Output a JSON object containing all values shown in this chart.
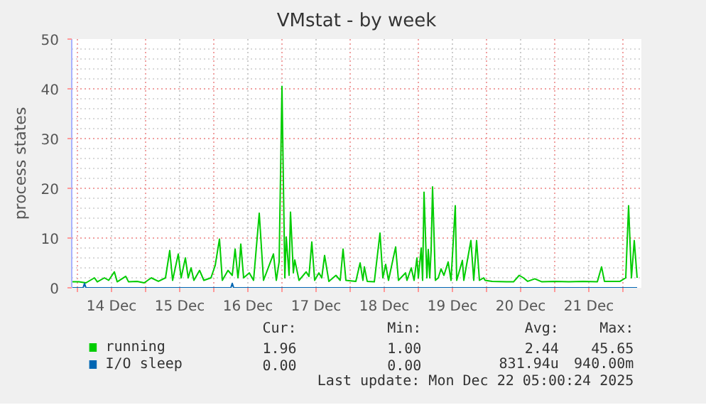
{
  "chart_data": {
    "type": "line",
    "title": "VMstat - by week",
    "ylabel": "process states",
    "xlim": [
      "2025-12-13T22:00",
      "2025-12-22T06:30"
    ],
    "xticks": [
      {
        "value": "2025-12-14T00:00",
        "label": null
      },
      {
        "value": "2025-12-14T12:00",
        "label": "14 Dec"
      },
      {
        "value": "2025-12-15T00:00",
        "label": null
      },
      {
        "value": "2025-12-15T12:00",
        "label": "15 Dec"
      },
      {
        "value": "2025-12-16T00:00",
        "label": null
      },
      {
        "value": "2025-12-16T12:00",
        "label": "16 Dec"
      },
      {
        "value": "2025-12-17T00:00",
        "label": null
      },
      {
        "value": "2025-12-17T12:00",
        "label": "17 Dec"
      },
      {
        "value": "2025-12-18T00:00",
        "label": null
      },
      {
        "value": "2025-12-18T12:00",
        "label": "18 Dec"
      },
      {
        "value": "2025-12-19T00:00",
        "label": null
      },
      {
        "value": "2025-12-19T12:00",
        "label": "19 Dec"
      },
      {
        "value": "2025-12-20T00:00",
        "label": null
      },
      {
        "value": "2025-12-20T12:00",
        "label": "20 Dec"
      },
      {
        "value": "2025-12-21T00:00",
        "label": null
      },
      {
        "value": "2025-12-21T12:00",
        "label": "21 Dec"
      },
      {
        "value": "2025-12-22T00:00",
        "label": null
      }
    ],
    "ylim": [
      0,
      50
    ],
    "yticks": [
      0,
      10,
      20,
      30,
      40,
      50
    ],
    "grid": true,
    "legend": "bottom",
    "series": [
      {
        "name": "running",
        "color": "#00cc00",
        "x": [
          "2025-12-13T22:00",
          "2025-12-14T00:30",
          "2025-12-14T03:00",
          "2025-12-14T06:00",
          "2025-12-14T07:00",
          "2025-12-14T09:30",
          "2025-12-14T11:00",
          "2025-12-14T13:00",
          "2025-12-14T14:00",
          "2025-12-14T17:00",
          "2025-12-14T18:00",
          "2025-12-14T21:00",
          "2025-12-14T23:30",
          "2025-12-15T02:00",
          "2025-12-15T04:30",
          "2025-12-15T07:00",
          "2025-12-15T08:30",
          "2025-12-15T09:30",
          "2025-12-15T11:30",
          "2025-12-15T12:30",
          "2025-12-15T14:00",
          "2025-12-15T15:00",
          "2025-12-15T16:00",
          "2025-12-15T17:00",
          "2025-12-15T19:00",
          "2025-12-15T20:30",
          "2025-12-15T23:00",
          "2025-12-16T00:30",
          "2025-12-16T02:00",
          "2025-12-16T03:00",
          "2025-12-16T05:00",
          "2025-12-16T06:30",
          "2025-12-16T07:30",
          "2025-12-16T08:30",
          "2025-12-16T09:00",
          "2025-12-16T09:30",
          "2025-12-16T10:30",
          "2025-12-16T12:30",
          "2025-12-16T14:00",
          "2025-12-16T16:00",
          "2025-12-16T17:30",
          "2025-12-16T21:00",
          "2025-12-16T22:00",
          "2025-12-16T23:00",
          "2025-12-17T00:00",
          "2025-12-17T01:00",
          "2025-12-17T01:30",
          "2025-12-17T02:30",
          "2025-12-17T03:00",
          "2025-12-17T04:00",
          "2025-12-17T04:30",
          "2025-12-17T06:00",
          "2025-12-17T08:30",
          "2025-12-17T09:30",
          "2025-12-17T10:30",
          "2025-12-17T11:30",
          "2025-12-17T13:00",
          "2025-12-17T14:00",
          "2025-12-17T15:00",
          "2025-12-17T16:30",
          "2025-12-17T19:00",
          "2025-12-17T20:30",
          "2025-12-17T21:30",
          "2025-12-17T22:30",
          "2025-12-18T02:00",
          "2025-12-18T03:30",
          "2025-12-18T04:30",
          "2025-12-18T05:00",
          "2025-12-18T06:00",
          "2025-12-18T08:30",
          "2025-12-18T10:30",
          "2025-12-18T11:30",
          "2025-12-18T12:30",
          "2025-12-18T13:30",
          "2025-12-18T16:00",
          "2025-12-18T17:00",
          "2025-12-18T19:30",
          "2025-12-18T20:00",
          "2025-12-18T21:30",
          "2025-12-18T22:30",
          "2025-12-18T23:30",
          "2025-12-19T00:00",
          "2025-12-19T01:00",
          "2025-12-19T01:30",
          "2025-12-19T02:00",
          "2025-12-19T03:00",
          "2025-12-19T03:30",
          "2025-12-19T04:00",
          "2025-12-19T04:30",
          "2025-12-19T05:00",
          "2025-12-19T06:00",
          "2025-12-19T07:00",
          "2025-12-19T08:00",
          "2025-12-19T09:00",
          "2025-12-19T10:30",
          "2025-12-19T11:30",
          "2025-12-19T13:00",
          "2025-12-19T13:30",
          "2025-12-19T15:30",
          "2025-12-19T16:00",
          "2025-12-19T18:30",
          "2025-12-19T19:30",
          "2025-12-19T20:30",
          "2025-12-19T21:30",
          "2025-12-19T23:00",
          "2025-12-19T23:30",
          "2025-12-20T02:00",
          "2025-12-20T07:00",
          "2025-12-20T09:30",
          "2025-12-20T11:30",
          "2025-12-20T13:00",
          "2025-12-20T14:30",
          "2025-12-20T17:00",
          "2025-12-20T19:30",
          "2025-12-21T00:00",
          "2025-12-21T05:00",
          "2025-12-21T10:00",
          "2025-12-21T15:00",
          "2025-12-21T16:30",
          "2025-12-21T17:30",
          "2025-12-21T23:00",
          "2025-12-22T01:00",
          "2025-12-22T02:00",
          "2025-12-22T03:00",
          "2025-12-22T04:00",
          "2025-12-22T05:00"
        ],
        "values": [
          1.2,
          1.2,
          1,
          2,
          1.2,
          2,
          1.5,
          3.2,
          1.2,
          2.3,
          1.2,
          1.3,
          1,
          2,
          1.3,
          2,
          7.5,
          1.5,
          6.8,
          2,
          6,
          2,
          4,
          1.5,
          3.5,
          1.5,
          2,
          4.5,
          9.8,
          1.5,
          3.5,
          2.5,
          7.8,
          2,
          4.5,
          8.8,
          2,
          3,
          1.5,
          15,
          1.5,
          6.8,
          1.5,
          5.2,
          40.5,
          2,
          10.2,
          2.5,
          15.2,
          3,
          5.6,
          1.5,
          3.2,
          2.3,
          9.2,
          1.5,
          3,
          2,
          6.5,
          1.3,
          2.5,
          1.5,
          7.8,
          1.5,
          1.3,
          5,
          1.5,
          4.2,
          1.3,
          1.2,
          11,
          2,
          4.7,
          1.5,
          8.2,
          1.5,
          3,
          1.5,
          4,
          1.5,
          6,
          2,
          8,
          1.5,
          19.2,
          2,
          7.7,
          2,
          7.5,
          20.3,
          1.5,
          2,
          3.8,
          2.5,
          5.2,
          1.5,
          16.5,
          1.5,
          5.5,
          1.5,
          9.5,
          1.5,
          9.5,
          1.5,
          2,
          1.5,
          1.3,
          1.2,
          1.2,
          2.5,
          2,
          1.3,
          1.8,
          1.2,
          1.3,
          1.2,
          1.3,
          1.2,
          4.2,
          1.3,
          1.3,
          2,
          16.5,
          2,
          9.5,
          2
        ]
      },
      {
        "name": "I/O sleep",
        "color": "#0066b3",
        "x": [
          "2025-12-13T22:00",
          "2025-12-14T02:00",
          "2025-12-14T02:30",
          "2025-12-14T03:00",
          "2025-12-16T06:00",
          "2025-12-16T06:30",
          "2025-12-16T07:00",
          "2025-12-22T05:00"
        ],
        "values": [
          0,
          0,
          0.9,
          0,
          0,
          0.9,
          0,
          0
        ]
      }
    ],
    "annotations": [
      "Cur:",
      "Min:",
      "Avg:",
      "Max:",
      "1.96",
      "1.00",
      "2.44",
      "45.65",
      "0.00",
      "0.00",
      "831.94u",
      "940.00m",
      "Last update: Mon Dec 22 05:00:24 2025"
    ]
  }
}
